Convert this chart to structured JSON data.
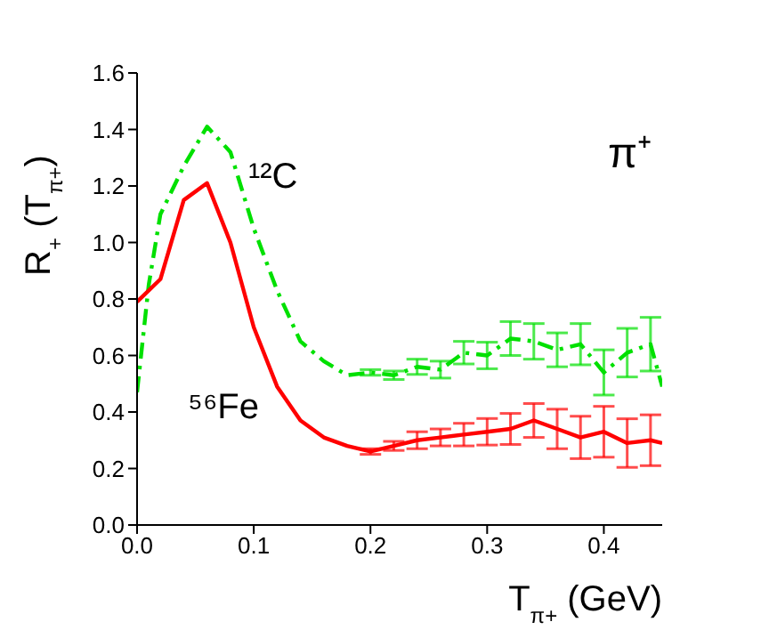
{
  "chart_data": {
    "type": "line",
    "xlabel": "T$_{π+}$ (GeV)",
    "ylabel": "R$_{+}$ (T$_{π+}$)",
    "annotations": [
      "π⁺"
    ],
    "xlim": [
      0,
      0.45
    ],
    "xticks": [
      {
        "value": 0,
        "label": "0.0"
      },
      0.1,
      0.2,
      0.3,
      0.4
    ],
    "ylim": [
      0,
      1.6
    ],
    "yticks": [
      {
        "value": 0,
        "label": "0.0"
      },
      0.2,
      0.4,
      0.6,
      0.8,
      {
        "value": 1,
        "label": "1.0"
      },
      1.2,
      1.4,
      1.6
    ],
    "grid": false,
    "legend": false,
    "marker": "none",
    "series": [
      {
        "name": "¹²C",
        "color": "#00e000",
        "line_style": "dashed",
        "x": [
          0,
          0.01,
          0.02,
          0.04,
          0.06,
          0.08,
          0.1,
          0.12,
          0.14,
          0.16,
          0.18,
          0.2,
          0.22,
          0.24,
          0.26,
          0.28,
          0.3,
          0.32,
          0.34,
          0.36,
          0.38,
          0.4,
          0.42,
          0.44,
          0.45
        ],
        "values": [
          0.47,
          0.85,
          1.1,
          1.27,
          1.41,
          1.32,
          1.05,
          0.83,
          0.65,
          0.58,
          0.53,
          0.54,
          0.53,
          0.56,
          0.55,
          0.61,
          0.6,
          0.66,
          0.65,
          0.62,
          0.64,
          0.54,
          0.61,
          0.64,
          0.49
        ],
        "errors": [
          null,
          null,
          null,
          null,
          null,
          null,
          null,
          null,
          null,
          null,
          null,
          0.01,
          0.015,
          0.027,
          0.03,
          0.04,
          0.047,
          0.06,
          0.063,
          0.06,
          0.073,
          0.08,
          0.086,
          0.095,
          null
        ]
      },
      {
        "name": "⁵⁶Fe",
        "color": "#ff0000",
        "line_style": "solid",
        "x": [
          0,
          0.02,
          0.04,
          0.06,
          0.08,
          0.1,
          0.12,
          0.14,
          0.16,
          0.18,
          0.2,
          0.22,
          0.24,
          0.26,
          0.28,
          0.3,
          0.32,
          0.34,
          0.36,
          0.38,
          0.4,
          0.42,
          0.44,
          0.45
        ],
        "values": [
          0.79,
          0.87,
          1.15,
          1.21,
          1.0,
          0.7,
          0.49,
          0.37,
          0.31,
          0.28,
          0.26,
          0.28,
          0.3,
          0.31,
          0.32,
          0.33,
          0.34,
          0.37,
          0.34,
          0.31,
          0.33,
          0.29,
          0.3,
          0.29
        ],
        "errors": [
          null,
          null,
          null,
          null,
          null,
          null,
          null,
          null,
          null,
          null,
          0.01,
          0.016,
          0.03,
          0.03,
          0.04,
          0.047,
          0.055,
          0.06,
          0.07,
          0.075,
          0.09,
          0.086,
          0.09,
          null
        ]
      }
    ]
  }
}
